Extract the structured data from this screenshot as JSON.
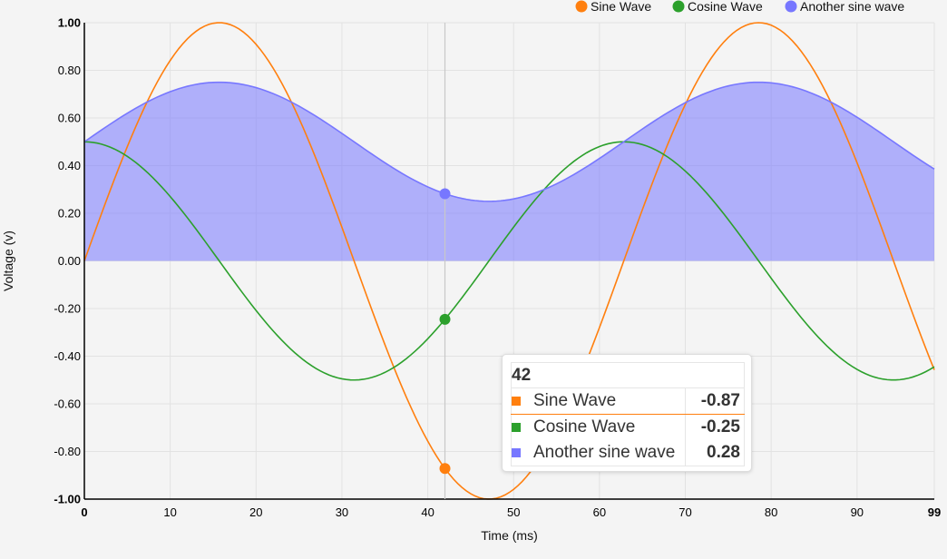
{
  "chart_data": {
    "type": "line",
    "title": "",
    "xlabel": "Time (ms)",
    "ylabel": "Voltage (v)",
    "xlim": [
      0,
      99
    ],
    "ylim": [
      -1,
      1
    ],
    "x_ticks": [
      0,
      10,
      20,
      30,
      40,
      50,
      60,
      70,
      80,
      90,
      99
    ],
    "y_ticks": [
      1.0,
      0.8,
      0.6,
      0.4,
      0.2,
      0.0,
      -0.2,
      -0.4,
      -0.6,
      -0.8,
      -1.0
    ],
    "grid": true,
    "legend_position": "top-right",
    "series": [
      {
        "name": "Sine Wave",
        "color": "#ff7f0e",
        "style": "line",
        "formula": "sin(x/10)",
        "x_range": [
          0,
          99
        ]
      },
      {
        "name": "Cosine Wave",
        "color": "#2ca02c",
        "style": "line",
        "formula": "0.5*cos(x/10)",
        "x_range": [
          0,
          99
        ]
      },
      {
        "name": "Another sine wave",
        "color": "#7777ff",
        "style": "area",
        "formula": "0.25*sin(x/10)+0.5",
        "x_range": [
          0,
          99
        ]
      }
    ],
    "hover": {
      "x": 42,
      "values": [
        {
          "name": "Sine Wave",
          "value": "-0.87",
          "color": "#ff7f0e",
          "highlighted": true
        },
        {
          "name": "Cosine Wave",
          "value": "-0.25",
          "color": "#2ca02c",
          "highlighted": false
        },
        {
          "name": "Another sine wave",
          "value": "0.28",
          "color": "#7777ff",
          "highlighted": false
        }
      ]
    }
  },
  "tooltip": {
    "header": "42"
  }
}
